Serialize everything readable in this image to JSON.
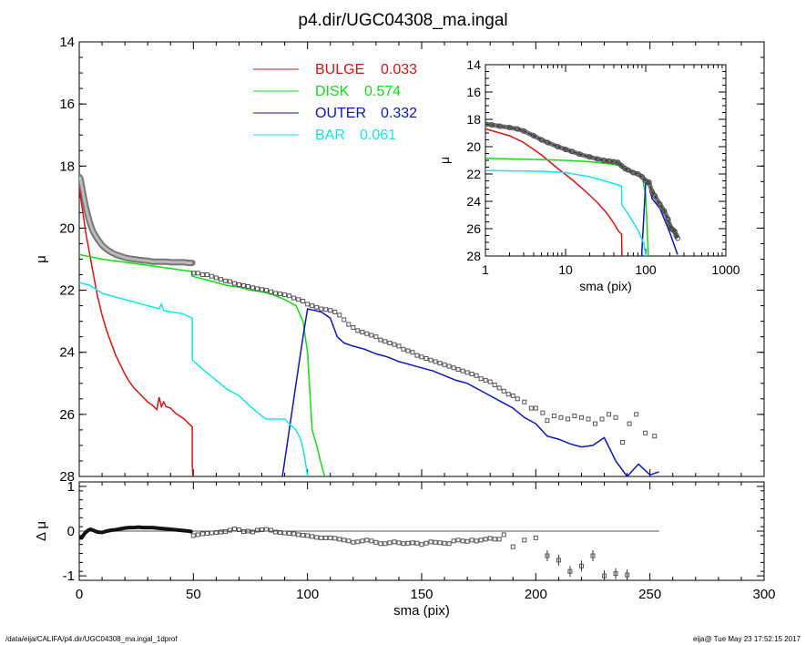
{
  "title": "p4.dir/UGC04308_ma.ingal",
  "footer_left": "/data/eija/CALIFA/p4.dir/UGC04308_ma.ingal_1dprof",
  "footer_right": "eija@  Tue May 23 17:52:15 2017",
  "colors": {
    "bulge": "#e01010",
    "disk": "#10e010",
    "outer": "#0a14c8",
    "bar": "#10e8e8",
    "data": "#555555"
  },
  "chart_data": [
    {
      "type": "line",
      "title": "p4.dir/UGC04308_ma.ingal",
      "xlabel": "",
      "ylabel": "μ",
      "xlim": [
        0,
        300
      ],
      "ylim": [
        28,
        14
      ],
      "y_inverted": true,
      "xticks": [
        0,
        50,
        100,
        150,
        200,
        250,
        300
      ],
      "yticks": [
        14,
        16,
        18,
        20,
        22,
        24,
        26,
        28
      ],
      "yticklabels": [
        "14",
        "16",
        "18",
        "20",
        "22",
        "24",
        "26",
        "28"
      ],
      "legend": [
        {
          "name": "BULGE",
          "value": "0.033",
          "color": "#e01010"
        },
        {
          "name": "DISK",
          "value": "0.574",
          "color": "#10e010"
        },
        {
          "name": "OUTER",
          "value": "0.332",
          "color": "#0a14c8"
        },
        {
          "name": "BAR",
          "value": "0.061",
          "color": "#10e8e8"
        }
      ],
      "series": [
        {
          "name": "BULGE",
          "x": [
            0,
            1,
            2,
            3,
            4,
            5,
            6,
            7,
            8,
            10,
            12,
            14,
            16,
            18,
            20,
            22,
            24,
            26,
            28,
            30,
            32,
            34,
            35,
            36,
            37,
            38,
            40,
            42,
            44,
            46,
            48,
            49.5,
            49.5,
            49.8
          ],
          "y": [
            18.7,
            19.2,
            19.7,
            20.2,
            20.6,
            21.0,
            21.4,
            21.8,
            22.2,
            22.8,
            23.3,
            23.7,
            24.1,
            24.4,
            24.7,
            24.95,
            25.15,
            25.3,
            25.45,
            25.6,
            25.7,
            25.85,
            25.45,
            25.75,
            25.6,
            25.75,
            25.8,
            25.95,
            26.05,
            26.15,
            26.3,
            26.4,
            27.6,
            28.0
          ]
        },
        {
          "name": "DISK",
          "x": [
            0,
            10,
            20,
            30,
            40,
            49.5,
            49.5,
            55,
            60,
            65,
            70,
            75,
            80,
            85,
            90,
            95,
            98,
            100,
            102,
            104,
            106,
            107.5
          ],
          "y": [
            20.85,
            21.0,
            21.1,
            21.2,
            21.3,
            21.4,
            21.55,
            21.65,
            21.75,
            21.85,
            21.9,
            22.0,
            22.05,
            22.15,
            22.3,
            22.5,
            23.0,
            24.0,
            26.5,
            27.0,
            27.6,
            28.0
          ]
        },
        {
          "name": "OUTER",
          "x": [
            89,
            92,
            95,
            98,
            100,
            103,
            106,
            108,
            110,
            113,
            116,
            120,
            125,
            130,
            135,
            140,
            145,
            150,
            155,
            160,
            165,
            170,
            175,
            180,
            185,
            190,
            195,
            200,
            205,
            210,
            215,
            220,
            225,
            230,
            235,
            240,
            245,
            250,
            254
          ],
          "y": [
            28.0,
            26.5,
            25.0,
            23.5,
            22.6,
            22.65,
            22.7,
            22.8,
            22.9,
            23.5,
            23.7,
            23.8,
            23.9,
            24.05,
            24.15,
            24.3,
            24.4,
            24.5,
            24.6,
            24.75,
            24.9,
            25.0,
            25.2,
            25.4,
            25.6,
            25.8,
            26.1,
            26.3,
            26.7,
            26.8,
            26.95,
            27.05,
            27.0,
            26.75,
            27.5,
            28.0,
            27.6,
            27.95,
            27.85
          ]
        },
        {
          "name": "BAR",
          "x": [
            0,
            5,
            10,
            15,
            20,
            25,
            30,
            35,
            36,
            37,
            40,
            45,
            49.5,
            49.5,
            55,
            60,
            65,
            70,
            75,
            80,
            82,
            85,
            88,
            90,
            92,
            95,
            97,
            98,
            99,
            100
          ],
          "y": [
            21.75,
            21.85,
            22.1,
            22.2,
            22.3,
            22.4,
            22.5,
            22.6,
            22.45,
            22.65,
            22.7,
            22.75,
            22.9,
            24.25,
            24.6,
            24.9,
            25.2,
            25.4,
            25.75,
            26.05,
            26.15,
            26.15,
            26.15,
            26.15,
            26.3,
            26.5,
            26.8,
            27.1,
            27.5,
            28.0
          ]
        },
        {
          "name": "data",
          "x": [
            50,
            52,
            54,
            56,
            58,
            60,
            62,
            64,
            66,
            68,
            70,
            72,
            74,
            76,
            78,
            80,
            82,
            84,
            86,
            88,
            90,
            92,
            94,
            96,
            98,
            100,
            102,
            104,
            106,
            108,
            110,
            112,
            114,
            116,
            118,
            120,
            122,
            124,
            126,
            128,
            130,
            132,
            134,
            136,
            138,
            140,
            142,
            144,
            146,
            148,
            150,
            152,
            154,
            156,
            158,
            160,
            162,
            164,
            166,
            168,
            170,
            172,
            174,
            176,
            178,
            180,
            182,
            184,
            186,
            188,
            190,
            192,
            195,
            198,
            200,
            203,
            205,
            208,
            211,
            214,
            217,
            220,
            223,
            226,
            229,
            232,
            235,
            238,
            241,
            244,
            248,
            252
          ],
          "y": [
            21.45,
            21.45,
            21.5,
            21.5,
            21.55,
            21.6,
            21.65,
            21.7,
            21.72,
            21.78,
            21.82,
            21.85,
            21.88,
            21.92,
            21.95,
            21.98,
            22.0,
            22.05,
            22.1,
            22.12,
            22.15,
            22.18,
            22.25,
            22.3,
            22.35,
            22.45,
            22.5,
            22.55,
            22.6,
            22.62,
            22.65,
            22.7,
            22.8,
            22.95,
            23.1,
            23.2,
            23.3,
            23.35,
            23.4,
            23.45,
            23.5,
            23.6,
            23.65,
            23.7,
            23.75,
            23.8,
            23.9,
            23.95,
            24.0,
            24.1,
            24.15,
            24.2,
            24.25,
            24.3,
            24.35,
            24.4,
            24.45,
            24.5,
            24.55,
            24.6,
            24.65,
            24.7,
            24.75,
            24.85,
            24.9,
            24.95,
            25.05,
            25.15,
            25.25,
            25.35,
            25.4,
            25.5,
            25.6,
            25.8,
            25.8,
            25.95,
            26.2,
            26.05,
            26.1,
            26.15,
            26.05,
            26.1,
            26.15,
            26.3,
            26.15,
            26.0,
            26.1,
            26.9,
            26.3,
            26.0,
            26.6,
            26.7
          ]
        }
      ]
    },
    {
      "type": "scatter",
      "xlabel": "sma (pix)",
      "ylabel": "Δ μ",
      "xlim": [
        0,
        300
      ],
      "ylim": [
        -1.1,
        1.1
      ],
      "xticks": [
        0,
        50,
        100,
        150,
        200,
        250,
        300
      ],
      "xticklabels": [
        "0",
        "50",
        "100",
        "150",
        "200",
        "250",
        "300"
      ],
      "yticks": [
        1,
        0,
        -1
      ],
      "yticklabels": [
        "1",
        "0",
        "-1"
      ],
      "reference_line": 0,
      "series": [
        {
          "name": "residual-inner",
          "x": [
            0,
            1,
            2,
            3,
            4,
            5,
            6,
            7,
            8,
            10,
            12,
            14,
            16,
            18,
            20,
            22,
            24,
            26,
            28,
            30,
            32,
            34,
            36,
            38,
            40,
            42,
            44,
            46,
            48,
            49
          ],
          "y": [
            -0.15,
            -0.15,
            -0.08,
            -0.02,
            0.02,
            0.04,
            0.02,
            0.0,
            -0.02,
            -0.03,
            0.0,
            0.02,
            0.03,
            0.05,
            0.07,
            0.08,
            0.08,
            0.09,
            0.08,
            0.08,
            0.08,
            0.07,
            0.06,
            0.05,
            0.04,
            0.03,
            0.02,
            0.01,
            0.0,
            -0.01
          ]
        },
        {
          "name": "residual-outer",
          "x": [
            50,
            52,
            54,
            56,
            58,
            60,
            62,
            64,
            66,
            68,
            70,
            72,
            74,
            76,
            78,
            80,
            82,
            84,
            86,
            88,
            90,
            92,
            94,
            96,
            98,
            100,
            102,
            104,
            106,
            108,
            110,
            112,
            114,
            116,
            118,
            120,
            122,
            124,
            126,
            128,
            130,
            132,
            134,
            136,
            138,
            140,
            142,
            144,
            146,
            148,
            150,
            152,
            154,
            156,
            158,
            160,
            162,
            164,
            166,
            168,
            170,
            172,
            174,
            176,
            178,
            180,
            182,
            184,
            186,
            190,
            195,
            200,
            205,
            210,
            215,
            220,
            225,
            230,
            235,
            240
          ],
          "y": [
            -0.1,
            -0.08,
            -0.06,
            -0.05,
            -0.04,
            -0.03,
            -0.02,
            -0.01,
            0.02,
            0.05,
            0.03,
            -0.01,
            0.0,
            -0.02,
            0.02,
            0.03,
            0.04,
            0.02,
            -0.02,
            -0.03,
            -0.04,
            -0.05,
            -0.06,
            -0.08,
            -0.09,
            -0.1,
            -0.12,
            -0.14,
            -0.15,
            -0.15,
            -0.15,
            -0.16,
            -0.18,
            -0.2,
            -0.22,
            -0.25,
            -0.24,
            -0.22,
            -0.2,
            -0.22,
            -0.25,
            -0.28,
            -0.28,
            -0.26,
            -0.24,
            -0.26,
            -0.28,
            -0.27,
            -0.26,
            -0.27,
            -0.3,
            -0.27,
            -0.24,
            -0.25,
            -0.26,
            -0.27,
            -0.28,
            -0.22,
            -0.2,
            -0.22,
            -0.23,
            -0.2,
            -0.22,
            -0.2,
            -0.18,
            -0.16,
            -0.18,
            -0.18,
            -0.08,
            -0.35,
            -0.2,
            -0.15,
            -0.55,
            -0.65,
            -0.9,
            -0.78,
            -0.55,
            -1.0,
            -0.95,
            -0.98
          ]
        }
      ]
    },
    {
      "type": "line",
      "xlabel": "sma (pix)",
      "ylabel": "μ",
      "x_scale": "log",
      "xlim": [
        1,
        1000
      ],
      "ylim": [
        28,
        14
      ],
      "y_inverted": true,
      "xticks": [
        1,
        10,
        100,
        1000
      ],
      "xticklabels": [
        "1",
        "10",
        "100",
        "1000"
      ],
      "yticks": [
        14,
        16,
        18,
        20,
        22,
        24,
        26,
        28
      ],
      "yticklabels": [
        "14",
        "16",
        "18",
        "20",
        "22",
        "24",
        "26",
        "28"
      ],
      "series": [
        {
          "name": "BULGE",
          "x": [
            1,
            2,
            3,
            5,
            8,
            12,
            18,
            25,
            32,
            40,
            46,
            50,
            50.5
          ],
          "y": [
            18.7,
            19.2,
            19.7,
            20.6,
            21.6,
            22.4,
            23.3,
            24.1,
            24.8,
            25.6,
            26.2,
            26.4,
            28.0
          ]
        },
        {
          "name": "DISK",
          "x": [
            1,
            5,
            10,
            20,
            40,
            50,
            70,
            90,
            100,
            105,
            108
          ],
          "y": [
            20.85,
            20.95,
            21.0,
            21.1,
            21.3,
            21.45,
            21.8,
            22.2,
            23.5,
            26.5,
            28.0
          ]
        },
        {
          "name": "OUTER",
          "x": [
            89,
            95,
            100,
            110,
            120,
            150,
            200,
            250
          ],
          "y": [
            28.0,
            25.0,
            22.6,
            22.9,
            23.8,
            24.5,
            26.3,
            27.9
          ]
        },
        {
          "name": "BAR",
          "x": [
            1,
            5,
            10,
            20,
            35,
            45,
            50,
            50.2,
            60,
            80,
            95,
            100
          ],
          "y": [
            21.75,
            21.8,
            21.9,
            22.2,
            22.6,
            22.8,
            22.9,
            24.25,
            24.9,
            26.1,
            27.1,
            28.0
          ]
        },
        {
          "name": "data",
          "x": [
            1,
            1.2,
            1.5,
            2,
            2.5,
            3,
            4,
            5,
            6,
            8,
            10,
            12,
            15,
            20,
            25,
            30,
            35,
            40,
            45,
            50,
            55,
            60,
            70,
            80,
            90,
            100,
            110,
            120,
            130,
            150,
            170,
            190,
            200,
            210,
            220,
            230,
            240,
            250
          ],
          "y": [
            18.35,
            18.4,
            18.5,
            18.6,
            18.7,
            18.85,
            19.2,
            19.5,
            19.7,
            20.0,
            20.2,
            20.35,
            20.55,
            20.75,
            20.9,
            21.0,
            21.05,
            21.1,
            21.15,
            21.4,
            21.6,
            21.7,
            21.9,
            22.0,
            22.2,
            22.5,
            22.6,
            23.3,
            23.6,
            24.2,
            24.7,
            25.3,
            25.8,
            26.0,
            26.1,
            26.2,
            26.5,
            26.7
          ]
        }
      ]
    }
  ]
}
